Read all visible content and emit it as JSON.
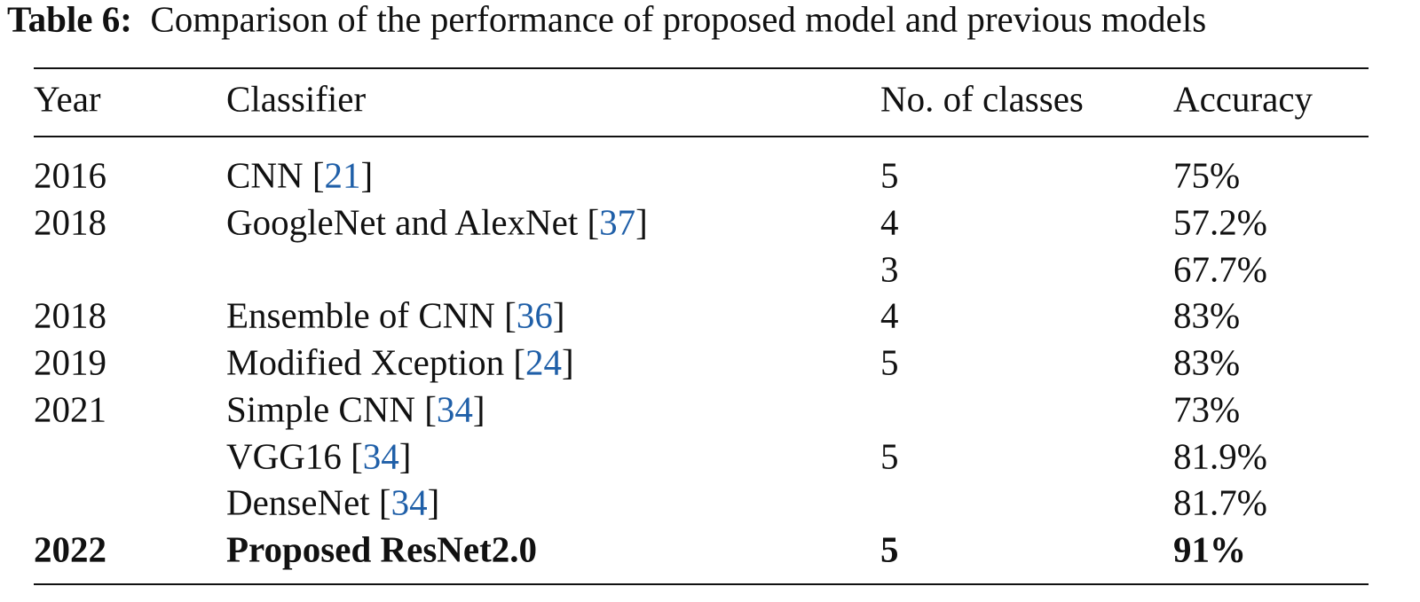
{
  "caption": {
    "label": "Table 6:",
    "text": "Comparison of the performance of proposed model and previous models"
  },
  "table": {
    "headers": [
      "Year",
      "Classifier",
      "No. of classes",
      "Accuracy"
    ],
    "rows": [
      {
        "year": "2016",
        "classifier": [
          "CNN [",
          "21",
          "]"
        ],
        "classes": "5",
        "accuracy": "75%",
        "bold": false
      },
      {
        "year": "2018",
        "classifier": [
          "GoogleNet and AlexNet [",
          "37",
          "]"
        ],
        "classes": "4",
        "accuracy": "57.2%",
        "bold": false
      },
      {
        "year": null,
        "classifier": null,
        "classes": "3",
        "accuracy": "67.7%",
        "bold": false
      },
      {
        "year": "2018",
        "classifier": [
          "Ensemble of CNN [",
          "36",
          "]"
        ],
        "classes": "4",
        "accuracy": "83%",
        "bold": false
      },
      {
        "year": "2019",
        "classifier": [
          "Modified Xception [",
          "24",
          "]"
        ],
        "classes": "5",
        "accuracy": "83%",
        "bold": false
      },
      {
        "year": "2021",
        "classifier": [
          "Simple CNN [",
          "34",
          "]"
        ],
        "classes": null,
        "accuracy": "73%",
        "bold": false
      },
      {
        "year": null,
        "classifier": [
          "VGG16 [",
          "34",
          "]"
        ],
        "classes": "5",
        "accuracy": "81.9%",
        "bold": false
      },
      {
        "year": null,
        "classifier": [
          "DenseNet [",
          "34",
          "]"
        ],
        "classes": null,
        "accuracy": "81.7%",
        "bold": false
      },
      {
        "year": "2022",
        "classifier": [
          "Proposed ResNet2.0"
        ],
        "classes": "5",
        "accuracy": "91%",
        "bold": true
      }
    ]
  }
}
